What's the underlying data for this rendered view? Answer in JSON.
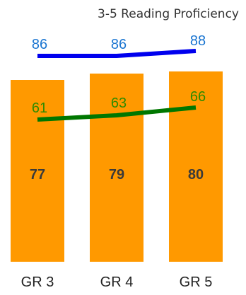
{
  "chart_data": {
    "type": "bar",
    "title": "3-5 Reading Proficiency",
    "categories": [
      "GR 3",
      "GR 4",
      "GR 5"
    ],
    "bars": {
      "values": [
        77,
        79,
        80
      ],
      "labels": [
        "77",
        "79",
        "80"
      ],
      "color": "#ff9900"
    },
    "series": [
      {
        "type": "line",
        "values": [
          86,
          86,
          88
        ],
        "labels": [
          "86",
          "86",
          "88"
        ],
        "color": "#0000ee",
        "label_color": "#1a75d1"
      },
      {
        "type": "line",
        "values": [
          61,
          63,
          66
        ],
        "labels": [
          "61",
          "63",
          "66"
        ],
        "color": "#007700",
        "label_color": "#2e8b00"
      }
    ],
    "ylim": [
      0,
      100
    ],
    "grid": false,
    "legend": "none"
  }
}
